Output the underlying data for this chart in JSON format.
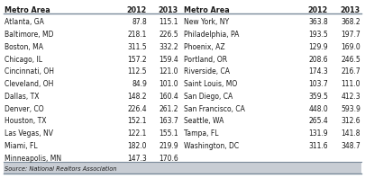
{
  "left_data": [
    [
      "Atlanta, GA",
      "87.8",
      "115.1"
    ],
    [
      "Baltimore, MD",
      "218.1",
      "226.5"
    ],
    [
      "Boston, MA",
      "311.5",
      "332.2"
    ],
    [
      "Chicago, IL",
      "157.2",
      "159.4"
    ],
    [
      "Cincinnati, OH",
      "112.5",
      "121.0"
    ],
    [
      "Cleveland, OH",
      "84.9",
      "101.0"
    ],
    [
      "Dallas, TX",
      "148.2",
      "160.4"
    ],
    [
      "Denver, CO",
      "226.4",
      "261.2"
    ],
    [
      "Houston, TX",
      "152.1",
      "163.7"
    ],
    [
      "Las Vegas, NV",
      "122.1",
      "155.1"
    ],
    [
      "Miami, FL",
      "182.0",
      "219.9"
    ],
    [
      "Minneapolis, MN",
      "147.3",
      "170.6"
    ]
  ],
  "right_data": [
    [
      "New York, NY",
      "363.8",
      "368.2"
    ],
    [
      "Philadelphia, PA",
      "193.5",
      "197.7"
    ],
    [
      "Phoenix, AZ",
      "129.9",
      "169.0"
    ],
    [
      "Portland, OR",
      "208.6",
      "246.5"
    ],
    [
      "Riverside, CA",
      "174.3",
      "216.7"
    ],
    [
      "Saint Louis, MO",
      "103.7",
      "111.0"
    ],
    [
      "San Diego, CA",
      "359.5",
      "412.3"
    ],
    [
      "San Francisco, CA",
      "448.0",
      "593.9"
    ],
    [
      "Seattle, WA",
      "265.4",
      "312.6"
    ],
    [
      "Tampa, FL",
      "131.9",
      "141.8"
    ],
    [
      "Washington, DC",
      "311.6",
      "348.7"
    ]
  ],
  "header": [
    "Metro Area",
    "2012",
    "2013"
  ],
  "source": "Source: National Realtors Association",
  "bg_color": "#ffffff",
  "header_bg": "#c8cdd4",
  "line_color": "#7a8a9a",
  "text_color": "#1a1a1a"
}
